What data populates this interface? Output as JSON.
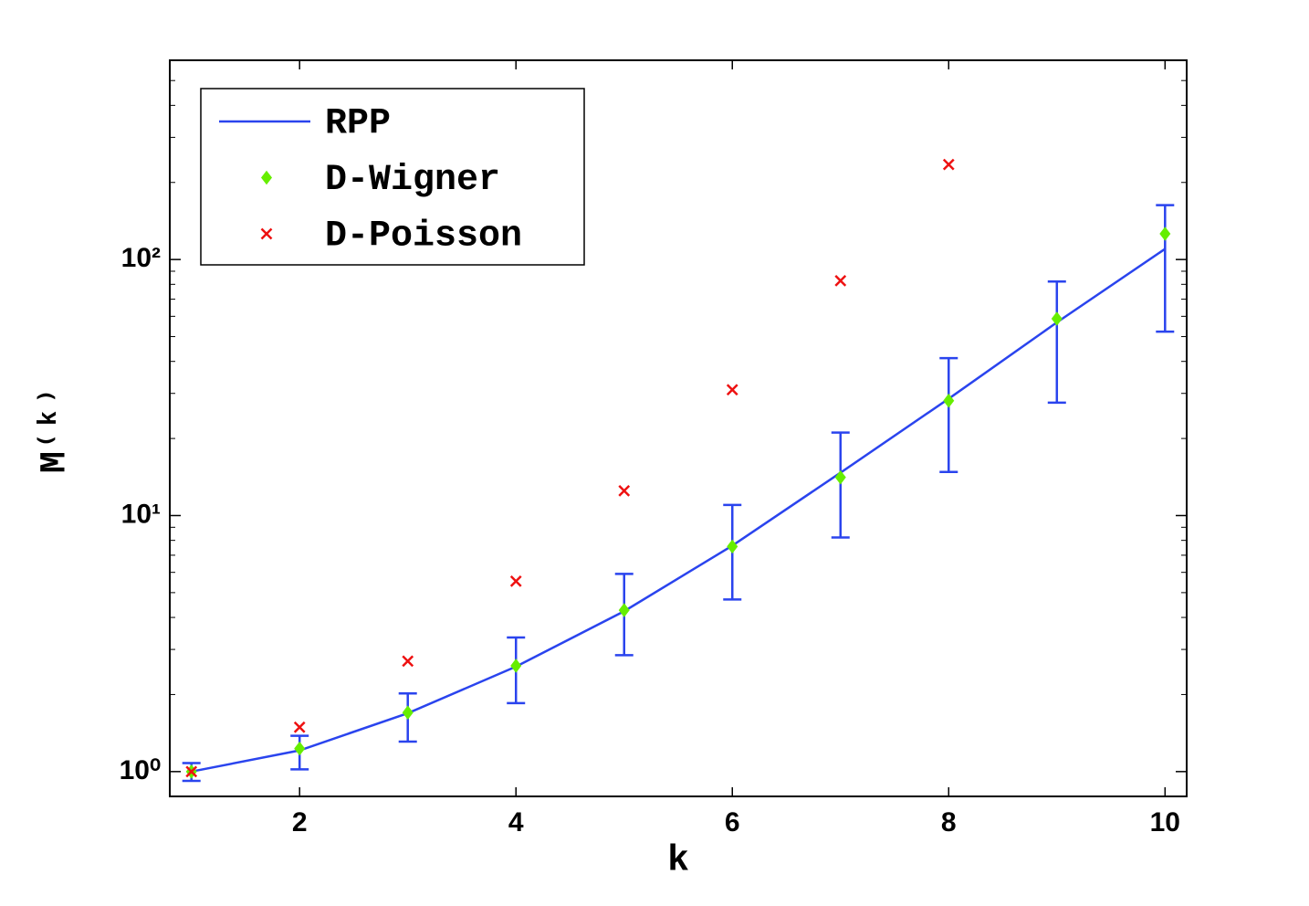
{
  "chart_data": {
    "type": "line",
    "x_label": "k",
    "y_label": "M⁽ᵏ⁾",
    "x": [
      1,
      2,
      3,
      4,
      5,
      6,
      7,
      8,
      9,
      10
    ],
    "series": [
      {
        "name": "RPP",
        "color": "#2a44ee",
        "values": [
          1.0,
          1.21,
          1.69,
          2.57,
          4.23,
          7.63,
          14.7,
          28.6,
          56.8,
          110
        ],
        "lower": [
          0.92,
          1.02,
          1.31,
          1.85,
          2.85,
          4.7,
          8.21,
          14.8,
          27.6,
          52.3
        ],
        "upper": [
          1.08,
          1.38,
          2.02,
          3.34,
          5.92,
          11.0,
          21.1,
          41.2,
          82.0,
          163
        ]
      },
      {
        "name": "D-Wigner",
        "color": "#66ee00",
        "marker": "diamond",
        "values": [
          1.0,
          1.23,
          1.7,
          2.59,
          4.27,
          7.57,
          14.1,
          28.1,
          58.7,
          126
        ]
      },
      {
        "name": "D-Poisson",
        "color": "#ee1111",
        "marker": "x",
        "values": [
          1.0,
          1.49,
          2.7,
          5.54,
          12.5,
          31.0,
          82.6,
          235,
          null,
          null
        ]
      }
    ],
    "xlim": [
      0.8,
      10.2
    ],
    "xticks": [
      2,
      4,
      6,
      8,
      10
    ],
    "ylim": [
      0.8,
      600
    ],
    "ylog": true,
    "yticks": [
      {
        "value": 1,
        "label": "10⁰"
      },
      {
        "value": 10,
        "label": "10¹"
      },
      {
        "value": 100,
        "label": "10²"
      }
    ],
    "yminor_ticks": [
      2,
      3,
      4,
      5,
      6,
      7,
      8,
      9,
      20,
      30,
      40,
      50,
      60,
      70,
      80,
      90,
      200,
      300,
      400,
      500
    ],
    "legend": "upper left"
  }
}
